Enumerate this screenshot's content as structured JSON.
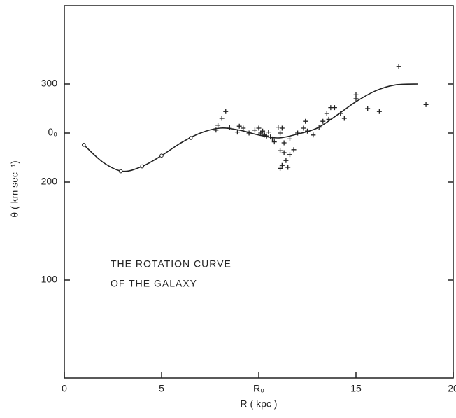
{
  "chart_data": {
    "type": "scatter",
    "xlabel": "R ( kpc )",
    "ylabel": "θ ( km sec⁻¹)",
    "annotations": [
      "THE ROTATION CURVE",
      "OF THE GALAXY"
    ],
    "xlim": [
      0,
      20
    ],
    "ylim": [
      0,
      380
    ],
    "xticks": [
      0,
      5,
      {
        "value": 10,
        "label": "R₀"
      },
      15,
      20
    ],
    "yticks": [
      100,
      200,
      {
        "value": 250,
        "label": "θ₀"
      },
      300
    ],
    "color": "#222",
    "series": [
      {
        "type": "line",
        "x": [
          1,
          2,
          3,
          4,
          5,
          6,
          7,
          8,
          9,
          10,
          11,
          12,
          13,
          14,
          15,
          16,
          17,
          18.2
        ],
        "values": [
          238,
          220,
          211,
          216,
          227,
          240,
          250,
          255,
          253,
          248,
          245,
          249,
          255,
          268,
          282,
          293,
          299,
          300
        ]
      },
      {
        "type": "scatter",
        "marker": "circle",
        "x": [
          1,
          2.9,
          4,
          5,
          6.5
        ],
        "values": [
          238,
          211,
          216,
          227,
          245
        ]
      },
      {
        "type": "scatter",
        "marker": "plus",
        "x": [
          7.9,
          8.1,
          8.3,
          7.8,
          8.5,
          9.0,
          9.2,
          8.9,
          9.5,
          9.8,
          10.0,
          10.1,
          10.2,
          10.3,
          10.4,
          10.5,
          10.6,
          10.7,
          10.8,
          11.0,
          11.1,
          11.2,
          11.3,
          11.1,
          11.3,
          11.4,
          11.2,
          11.1,
          11.6,
          11.8,
          11.5,
          11.6,
          12.0,
          12.3,
          12.4,
          12.5,
          12.8,
          13.1,
          13.3,
          13.5,
          13.6,
          13.7,
          13.9,
          14.2,
          14.4,
          15.0,
          15.0,
          15.6,
          16.2,
          17.2,
          18.6
        ],
        "values": [
          258,
          265,
          272,
          253,
          256,
          257,
          255,
          251,
          250,
          253,
          255,
          250,
          252,
          248,
          247,
          251,
          246,
          244,
          241,
          256,
          250,
          255,
          240,
          232,
          230,
          222,
          217,
          214,
          228,
          233,
          215,
          244,
          250,
          255,
          262,
          252,
          248,
          256,
          262,
          270,
          264,
          276,
          276,
          270,
          265,
          285,
          289,
          275,
          272,
          318,
          279
        ]
      }
    ]
  }
}
